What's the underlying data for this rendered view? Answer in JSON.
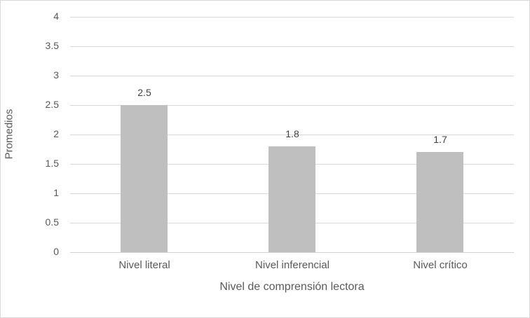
{
  "window": {
    "background": "#ffffff",
    "border_color": "#d9d9d9"
  },
  "chart_data": {
    "type": "bar",
    "title": "",
    "categories": [
      "Nivel literal",
      "Nivel inferencial",
      "Nivel crítico"
    ],
    "values": [
      2.5,
      1.8,
      1.7
    ],
    "data_labels": [
      "2.5",
      "1.8",
      "1.7"
    ],
    "xlabel": "Nivel de comprensión lectora",
    "ylabel": "Promedios",
    "ylim": [
      0,
      4
    ],
    "ytick_step": 0.5,
    "ytick_labels": [
      "0",
      "0.5",
      "1",
      "1.5",
      "2",
      "2.5",
      "3",
      "3.5",
      "4"
    ],
    "grid": "horizontal",
    "legend": "none",
    "bar_color": "#bfbfbf",
    "gridline_color": "#d9d9d9",
    "axis_text_color": "#595959",
    "data_label_color": "#404040"
  }
}
